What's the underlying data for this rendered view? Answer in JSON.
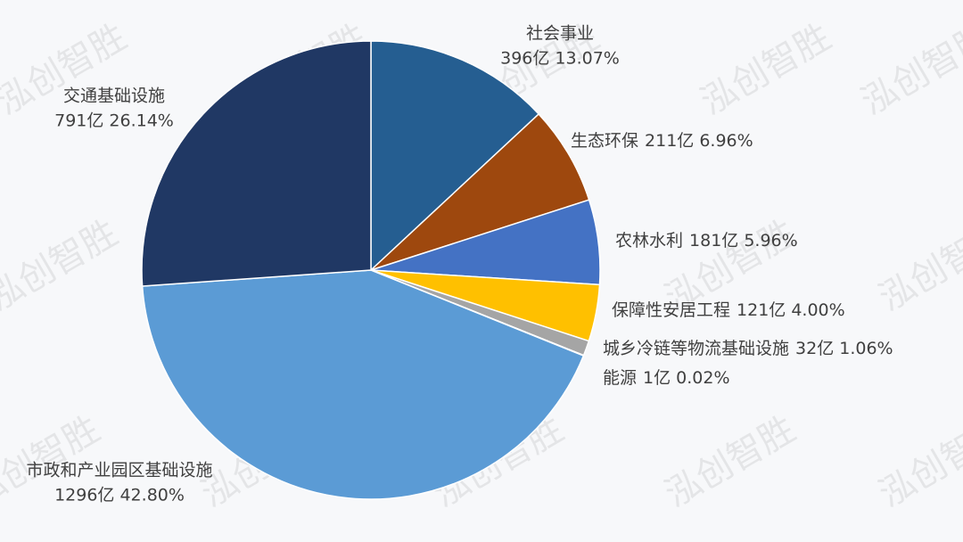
{
  "chart_data": {
    "type": "pie",
    "watermark": "泓创智胜",
    "categories": [
      "社会事业",
      "生态环保",
      "农林水利",
      "保障性安居工程",
      "城乡冷链等物流基础设施",
      "能源",
      "市政和产业园区基础设施",
      "交通基础设施"
    ],
    "values": [
      396,
      211,
      181,
      121,
      32,
      1,
      1296,
      791
    ],
    "value_labels": [
      "396亿  13.07%",
      "211亿 6.96%",
      "181亿 5.96%",
      "121亿  4.00%",
      "32亿  1.06%",
      "1亿  0.02%",
      "1296亿  42.80%",
      "791亿  26.14%"
    ],
    "colors": [
      "#255e91",
      "#9e480e",
      "#4472c4",
      "#ffc000",
      "#a5a5a5",
      "#264478",
      "#5b9bd5",
      "#203864"
    ]
  }
}
